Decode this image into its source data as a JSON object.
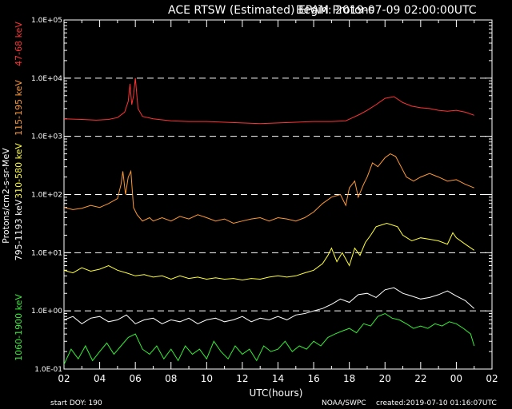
{
  "chart_data": {
    "type": "line",
    "title": "ACE RTSW (Estimated) EPAM Protons",
    "begin_text": "Begin: 2019-07-09 02:00:00UTC",
    "xlabel": "UTC(hours)",
    "ylabel": "Protons/cm2-s-sr-MeV",
    "yscale": "log",
    "ylim": [
      0.1,
      100000
    ],
    "x_range_hours": [
      2,
      26
    ],
    "x_tick_labels": [
      "02",
      "04",
      "06",
      "08",
      "10",
      "12",
      "14",
      "16",
      "18",
      "20",
      "22",
      "00",
      "02"
    ],
    "y_tick_labels": [
      "1.0E-01",
      "1.0E+00",
      "1.0E+01",
      "1.0E+02",
      "1.0E+03",
      "1.0E+04",
      "1.0E+05"
    ],
    "dashed_ref_lines": [
      1,
      10,
      100,
      1000,
      10000
    ],
    "footer": {
      "start_doy": "start DOY:  190",
      "source": "NOAA/SWPC",
      "created": "created:2019-07-10 01:16:07UTC"
    },
    "series": [
      {
        "name": "47-68 keV",
        "color": "#ff3333",
        "points": [
          [
            2.0,
            2000
          ],
          [
            3.0,
            1950
          ],
          [
            3.8,
            1900
          ],
          [
            4.5,
            1950
          ],
          [
            5.0,
            2100
          ],
          [
            5.4,
            2600
          ],
          [
            5.6,
            4000
          ],
          [
            5.7,
            8000
          ],
          [
            5.8,
            3500
          ],
          [
            5.9,
            5000
          ],
          [
            6.0,
            10000
          ],
          [
            6.15,
            3000
          ],
          [
            6.4,
            2200
          ],
          [
            7.0,
            2000
          ],
          [
            8.0,
            1850
          ],
          [
            9.0,
            1800
          ],
          [
            10.0,
            1800
          ],
          [
            11.0,
            1750
          ],
          [
            12.0,
            1700
          ],
          [
            13.0,
            1650
          ],
          [
            14.0,
            1700
          ],
          [
            15.0,
            1750
          ],
          [
            16.0,
            1800
          ],
          [
            17.0,
            1800
          ],
          [
            17.8,
            1850
          ],
          [
            18.2,
            2100
          ],
          [
            18.6,
            2400
          ],
          [
            19.0,
            2800
          ],
          [
            19.5,
            3500
          ],
          [
            20.0,
            4500
          ],
          [
            20.5,
            4800
          ],
          [
            21.0,
            3800
          ],
          [
            21.5,
            3300
          ],
          [
            22.0,
            3100
          ],
          [
            22.5,
            3000
          ],
          [
            23.0,
            2800
          ],
          [
            23.5,
            2700
          ],
          [
            24.0,
            2800
          ],
          [
            24.5,
            2600
          ],
          [
            25.0,
            2300
          ]
        ]
      },
      {
        "name": "115-195 keV",
        "color": "#ff9933",
        "points": [
          [
            2.0,
            60
          ],
          [
            2.5,
            55
          ],
          [
            3.0,
            58
          ],
          [
            3.5,
            65
          ],
          [
            4.0,
            60
          ],
          [
            4.5,
            70
          ],
          [
            5.0,
            85
          ],
          [
            5.2,
            150
          ],
          [
            5.3,
            250
          ],
          [
            5.45,
            100
          ],
          [
            5.6,
            200
          ],
          [
            5.75,
            250
          ],
          [
            5.9,
            60
          ],
          [
            6.1,
            45
          ],
          [
            6.4,
            35
          ],
          [
            6.8,
            40
          ],
          [
            7.0,
            35
          ],
          [
            7.5,
            40
          ],
          [
            8.0,
            35
          ],
          [
            8.5,
            42
          ],
          [
            9.0,
            38
          ],
          [
            9.5,
            45
          ],
          [
            10.0,
            40
          ],
          [
            10.5,
            35
          ],
          [
            11.0,
            38
          ],
          [
            11.5,
            32
          ],
          [
            12.0,
            35
          ],
          [
            12.5,
            38
          ],
          [
            13.0,
            40
          ],
          [
            13.5,
            35
          ],
          [
            14.0,
            40
          ],
          [
            14.5,
            38
          ],
          [
            15.0,
            35
          ],
          [
            15.5,
            40
          ],
          [
            16.0,
            50
          ],
          [
            16.5,
            70
          ],
          [
            17.0,
            90
          ],
          [
            17.5,
            100
          ],
          [
            17.8,
            65
          ],
          [
            18.0,
            130
          ],
          [
            18.3,
            170
          ],
          [
            18.5,
            90
          ],
          [
            18.8,
            150
          ],
          [
            19.0,
            200
          ],
          [
            19.3,
            350
          ],
          [
            19.6,
            300
          ],
          [
            20.0,
            430
          ],
          [
            20.3,
            500
          ],
          [
            20.6,
            450
          ],
          [
            20.9,
            300
          ],
          [
            21.2,
            200
          ],
          [
            21.6,
            170
          ],
          [
            22.0,
            200
          ],
          [
            22.5,
            230
          ],
          [
            23.0,
            200
          ],
          [
            23.5,
            170
          ],
          [
            24.0,
            180
          ],
          [
            24.5,
            150
          ],
          [
            25.0,
            130
          ]
        ]
      },
      {
        "name": "310-580 keV",
        "color": "#ffff33",
        "points": [
          [
            2.0,
            5
          ],
          [
            2.5,
            4.5
          ],
          [
            3.0,
            5.5
          ],
          [
            3.5,
            4.8
          ],
          [
            4.0,
            5.2
          ],
          [
            4.5,
            6
          ],
          [
            5.0,
            5
          ],
          [
            5.5,
            4.5
          ],
          [
            6.0,
            4
          ],
          [
            6.5,
            4.2
          ],
          [
            7.0,
            3.8
          ],
          [
            7.5,
            4
          ],
          [
            8.0,
            3.5
          ],
          [
            8.5,
            4
          ],
          [
            9.0,
            3.6
          ],
          [
            9.5,
            3.8
          ],
          [
            10.0,
            3.5
          ],
          [
            10.5,
            3.7
          ],
          [
            11.0,
            3.5
          ],
          [
            11.5,
            3.6
          ],
          [
            12.0,
            3.4
          ],
          [
            12.5,
            3.6
          ],
          [
            13.0,
            3.5
          ],
          [
            13.5,
            3.8
          ],
          [
            14.0,
            4
          ],
          [
            14.5,
            3.8
          ],
          [
            15.0,
            4
          ],
          [
            15.5,
            4.5
          ],
          [
            16.0,
            5
          ],
          [
            16.5,
            6.5
          ],
          [
            16.8,
            9
          ],
          [
            17.0,
            12
          ],
          [
            17.3,
            7
          ],
          [
            17.6,
            10
          ],
          [
            18.0,
            6
          ],
          [
            18.3,
            12
          ],
          [
            18.6,
            9
          ],
          [
            18.9,
            15
          ],
          [
            19.2,
            20
          ],
          [
            19.5,
            28
          ],
          [
            19.8,
            30
          ],
          [
            20.1,
            32
          ],
          [
            20.4,
            30
          ],
          [
            20.7,
            28
          ],
          [
            21.0,
            20
          ],
          [
            21.5,
            16
          ],
          [
            22.0,
            18
          ],
          [
            22.5,
            17
          ],
          [
            23.0,
            16
          ],
          [
            23.5,
            14
          ],
          [
            23.8,
            22
          ],
          [
            24.0,
            18
          ],
          [
            24.5,
            14
          ],
          [
            25.0,
            11
          ]
        ]
      },
      {
        "name": "795-1193 keV",
        "color": "#ffffff",
        "points": [
          [
            2.0,
            0.7
          ],
          [
            2.5,
            0.8
          ],
          [
            3.0,
            0.6
          ],
          [
            3.5,
            0.75
          ],
          [
            4.0,
            0.8
          ],
          [
            4.5,
            0.65
          ],
          [
            5.0,
            0.7
          ],
          [
            5.5,
            0.85
          ],
          [
            6.0,
            0.6
          ],
          [
            6.5,
            0.7
          ],
          [
            7.0,
            0.75
          ],
          [
            7.5,
            0.6
          ],
          [
            8.0,
            0.7
          ],
          [
            8.5,
            0.65
          ],
          [
            9.0,
            0.75
          ],
          [
            9.5,
            0.6
          ],
          [
            10.0,
            0.7
          ],
          [
            10.5,
            0.75
          ],
          [
            11.0,
            0.65
          ],
          [
            11.5,
            0.7
          ],
          [
            12.0,
            0.8
          ],
          [
            12.5,
            0.65
          ],
          [
            13.0,
            0.75
          ],
          [
            13.5,
            0.7
          ],
          [
            14.0,
            0.8
          ],
          [
            14.5,
            0.7
          ],
          [
            15.0,
            0.85
          ],
          [
            15.5,
            0.9
          ],
          [
            16.0,
            1.0
          ],
          [
            16.5,
            1.1
          ],
          [
            17.0,
            1.3
          ],
          [
            17.5,
            1.6
          ],
          [
            18.0,
            1.4
          ],
          [
            18.5,
            1.9
          ],
          [
            19.0,
            2.0
          ],
          [
            19.5,
            1.7
          ],
          [
            20.0,
            2.3
          ],
          [
            20.5,
            2.5
          ],
          [
            21.0,
            2.0
          ],
          [
            21.5,
            1.8
          ],
          [
            22.0,
            1.6
          ],
          [
            22.5,
            1.7
          ],
          [
            23.0,
            1.9
          ],
          [
            23.5,
            2.2
          ],
          [
            24.0,
            1.8
          ],
          [
            24.5,
            1.5
          ],
          [
            25.0,
            1.1
          ]
        ]
      },
      {
        "name": "1060-1900 keV",
        "color": "#33ee33",
        "points": [
          [
            2.0,
            0.12
          ],
          [
            2.4,
            0.22
          ],
          [
            2.8,
            0.15
          ],
          [
            3.2,
            0.25
          ],
          [
            3.6,
            0.14
          ],
          [
            4.0,
            0.2
          ],
          [
            4.4,
            0.28
          ],
          [
            4.8,
            0.18
          ],
          [
            5.2,
            0.25
          ],
          [
            5.6,
            0.35
          ],
          [
            6.0,
            0.4
          ],
          [
            6.4,
            0.22
          ],
          [
            6.8,
            0.18
          ],
          [
            7.2,
            0.25
          ],
          [
            7.6,
            0.15
          ],
          [
            8.0,
            0.22
          ],
          [
            8.4,
            0.14
          ],
          [
            8.8,
            0.25
          ],
          [
            9.2,
            0.18
          ],
          [
            9.6,
            0.22
          ],
          [
            10.0,
            0.15
          ],
          [
            10.4,
            0.3
          ],
          [
            10.8,
            0.2
          ],
          [
            11.2,
            0.15
          ],
          [
            11.6,
            0.25
          ],
          [
            12.0,
            0.18
          ],
          [
            12.4,
            0.22
          ],
          [
            12.8,
            0.14
          ],
          [
            13.2,
            0.25
          ],
          [
            13.6,
            0.2
          ],
          [
            14.0,
            0.22
          ],
          [
            14.4,
            0.3
          ],
          [
            14.8,
            0.2
          ],
          [
            15.2,
            0.25
          ],
          [
            15.6,
            0.22
          ],
          [
            16.0,
            0.3
          ],
          [
            16.4,
            0.25
          ],
          [
            16.8,
            0.35
          ],
          [
            17.2,
            0.4
          ],
          [
            17.6,
            0.45
          ],
          [
            18.0,
            0.5
          ],
          [
            18.4,
            0.42
          ],
          [
            18.8,
            0.6
          ],
          [
            19.2,
            0.55
          ],
          [
            19.6,
            0.8
          ],
          [
            20.0,
            0.9
          ],
          [
            20.4,
            0.75
          ],
          [
            20.8,
            0.7
          ],
          [
            21.2,
            0.6
          ],
          [
            21.6,
            0.5
          ],
          [
            22.0,
            0.55
          ],
          [
            22.4,
            0.5
          ],
          [
            22.8,
            0.6
          ],
          [
            23.2,
            0.55
          ],
          [
            23.6,
            0.65
          ],
          [
            24.0,
            0.6
          ],
          [
            24.4,
            0.5
          ],
          [
            24.8,
            0.4
          ],
          [
            25.0,
            0.25
          ]
        ]
      }
    ]
  }
}
